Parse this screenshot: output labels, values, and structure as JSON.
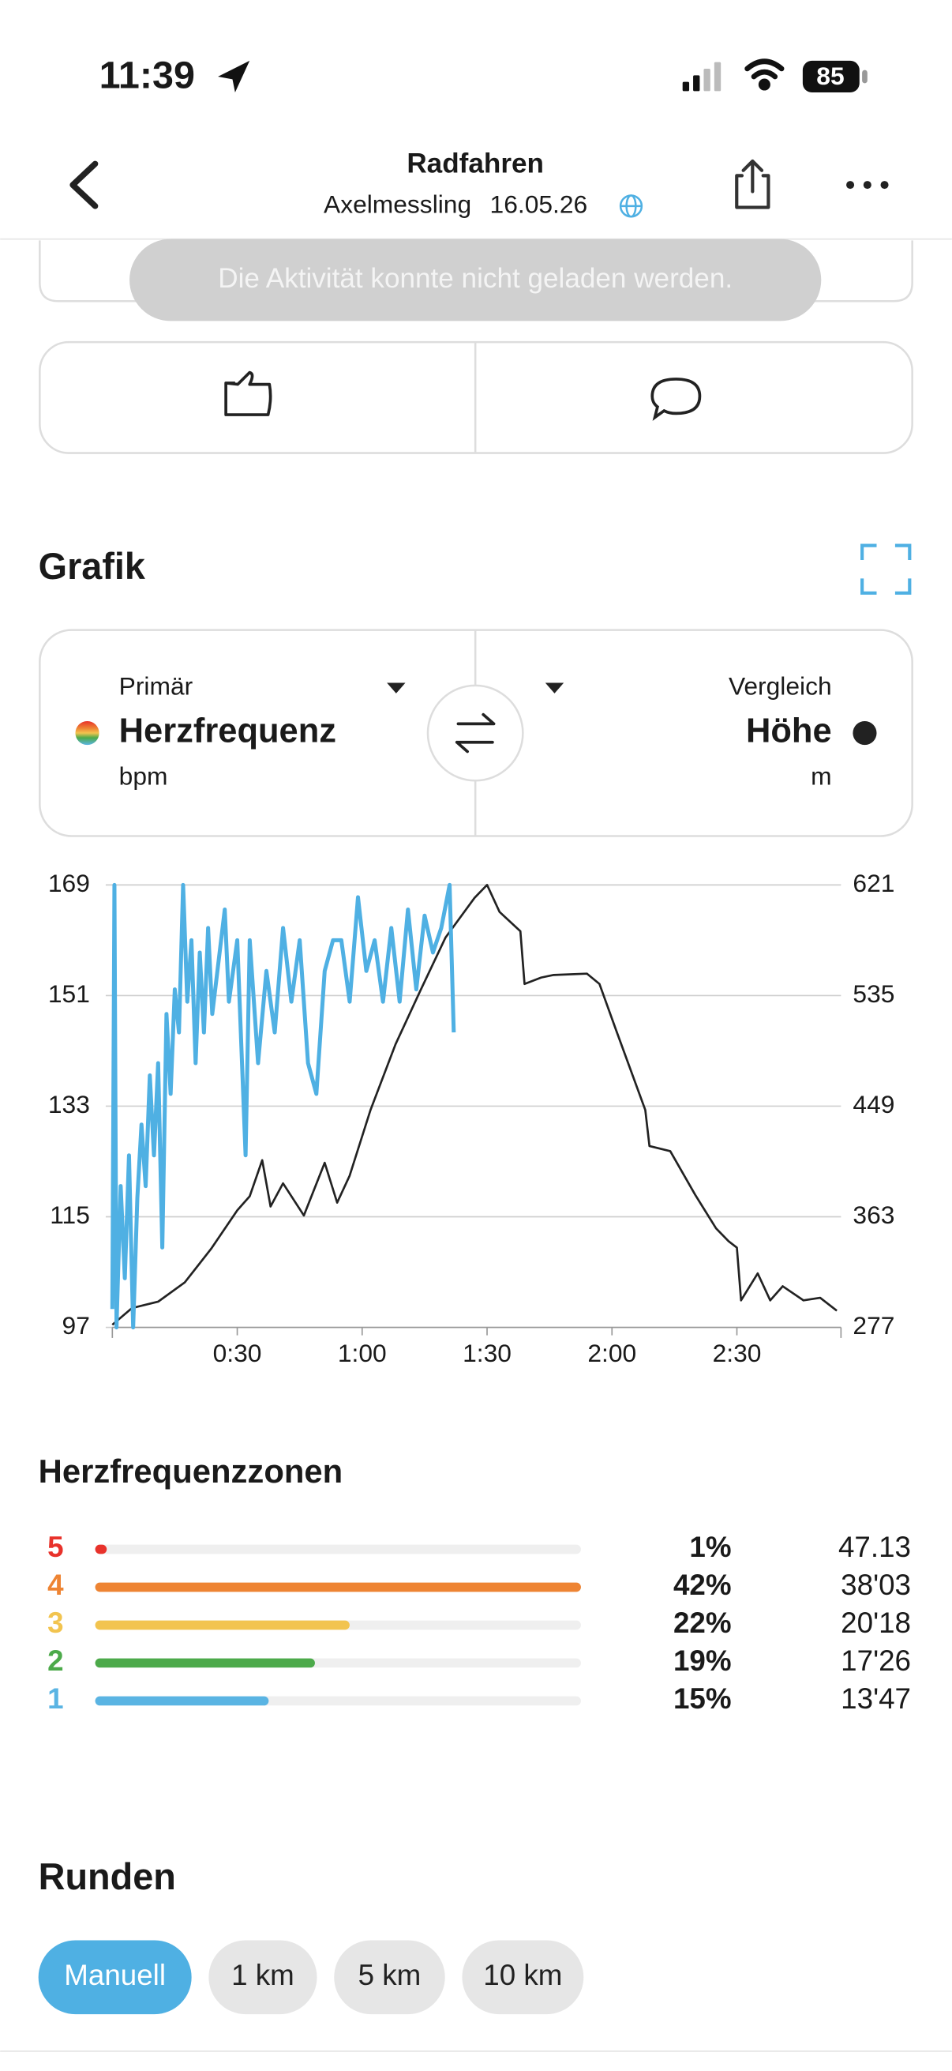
{
  "status_bar": {
    "time": "11:39",
    "battery": "85"
  },
  "header": {
    "title": "Radfahren",
    "user": "Axelmessling",
    "date": "16.05.26"
  },
  "toast": "Die Aktivität konnte nicht geladen werden.",
  "graph_section": {
    "title": "Grafik",
    "primary": {
      "caption": "Primär",
      "metric": "Herzfrequenz",
      "unit": "bpm"
    },
    "compare": {
      "caption": "Vergleich",
      "metric": "Höhe",
      "unit": "m"
    }
  },
  "chart_data": {
    "type": "line",
    "xlim": [
      0,
      175
    ],
    "xticks": [
      {
        "value": 30,
        "label": "0:30"
      },
      {
        "value": 60,
        "label": "1:00"
      },
      {
        "value": 90,
        "label": "1:30"
      },
      {
        "value": 120,
        "label": "2:00"
      },
      {
        "value": 150,
        "label": "2:30"
      }
    ],
    "ylim": [
      97,
      169
    ],
    "yticks": [
      97,
      115,
      133,
      151,
      169
    ],
    "y2lim": [
      277,
      621
    ],
    "y2ticks": [
      277,
      363,
      449,
      535,
      621
    ],
    "grid": true,
    "series": [
      {
        "name": "Herzfrequenz",
        "color": "#4fb0e3",
        "x": [
          0,
          0.5,
          1,
          2,
          3,
          4,
          5,
          6,
          7,
          8,
          9,
          10,
          11,
          12,
          13,
          14,
          15,
          16,
          17,
          18,
          19,
          20,
          21,
          22,
          23,
          24,
          27,
          28,
          30,
          32,
          33,
          35,
          37,
          39,
          41,
          43,
          45,
          47,
          49,
          51,
          53,
          55,
          57,
          59,
          61,
          63,
          65,
          67,
          69,
          71,
          73,
          75,
          77,
          79,
          81,
          82
        ],
        "values": [
          100,
          169,
          97,
          120,
          105,
          125,
          97,
          118,
          130,
          120,
          138,
          125,
          140,
          110,
          148,
          135,
          152,
          145,
          169,
          150,
          160,
          140,
          158,
          145,
          162,
          148,
          165,
          150,
          160,
          125,
          160,
          140,
          155,
          145,
          162,
          150,
          160,
          140,
          135,
          155,
          160,
          160,
          150,
          167,
          155,
          160,
          150,
          162,
          150,
          165,
          152,
          164,
          158,
          162,
          169,
          145
        ]
      },
      {
        "name": "Höhe",
        "color": "#222222",
        "axis": "y2",
        "x": [
          0,
          4.7,
          11,
          17.4,
          23.7,
          30,
          33,
          36,
          38,
          41,
          46,
          51,
          54,
          57,
          62,
          68,
          74,
          80,
          87,
          90,
          93,
          98,
          99,
          103,
          106,
          114,
          117,
          121,
          128,
          129,
          134,
          140,
          145,
          148,
          150,
          151,
          155,
          158,
          161,
          166,
          170,
          174
        ],
        "values": [
          279,
          292,
          297,
          312,
          338,
          368,
          379,
          407,
          371,
          389,
          364,
          405,
          374,
          395,
          446,
          497,
          539,
          580,
          611,
          621,
          600,
          585,
          544,
          549,
          551,
          552,
          544,
          508,
          446,
          418,
          414,
          380,
          354,
          344,
          339,
          298,
          319,
          298,
          309,
          298,
          300,
          290
        ]
      }
    ]
  },
  "zones": {
    "title": "Herzfrequenzzonen",
    "items": [
      {
        "zone": "5",
        "value": 1,
        "value_label": "1%",
        "time": "47.13",
        "color": "#e8322b"
      },
      {
        "zone": "4",
        "value": 42,
        "value_label": "42%",
        "time": "38'03",
        "color": "#ee8433"
      },
      {
        "zone": "3",
        "value": 22,
        "value_label": "22%",
        "time": "20'18",
        "color": "#f2c44f"
      },
      {
        "zone": "2",
        "value": 19,
        "value_label": "19%",
        "time": "17'26",
        "color": "#4caa4a"
      },
      {
        "zone": "1",
        "value": 15,
        "value_label": "15%",
        "time": "13'47",
        "color": "#5ab4e3"
      }
    ]
  },
  "laps": {
    "title": "Runden",
    "tabs": [
      "Manuell",
      "1 km",
      "5 km",
      "10 km"
    ]
  }
}
